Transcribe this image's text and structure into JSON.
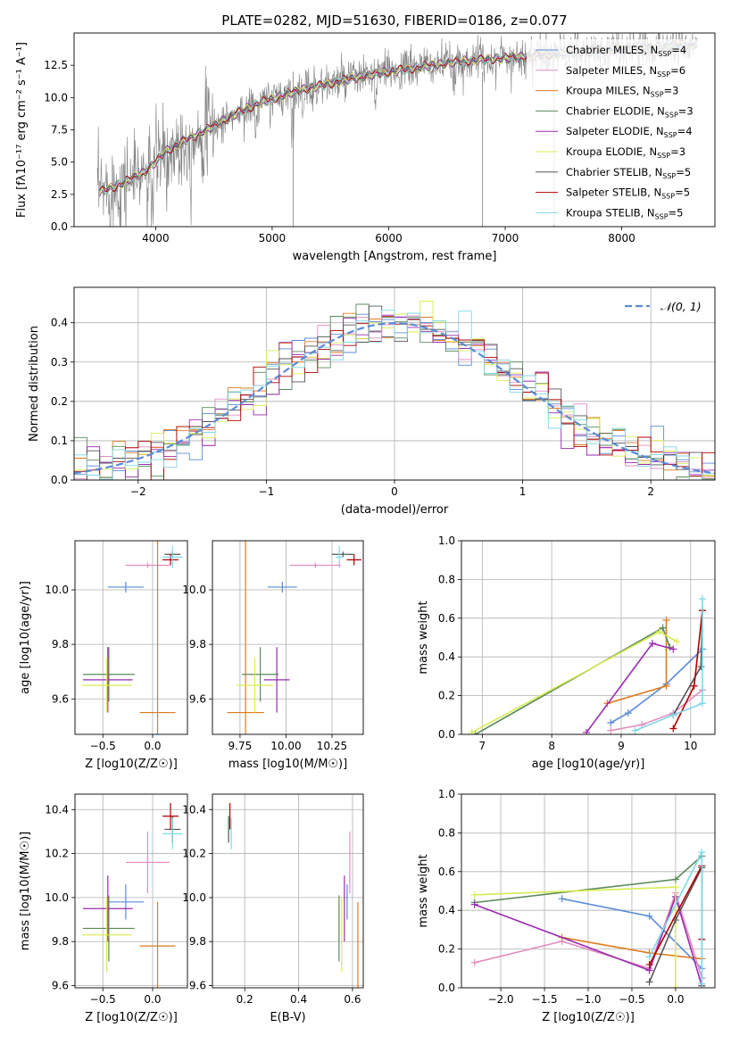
{
  "colors": {
    "Chabrier MILES": "#5b8bd6",
    "Salpeter MILES": "#e38cc0",
    "Kroupa MILES": "#e07b1f",
    "Chabrier ELODIE": "#5a8a5a",
    "Salpeter ELODIE": "#9a2ab0",
    "Kroupa ELODIE": "#d8ec50",
    "Chabrier STELIB": "#555555",
    "Salpeter STELIB": "#b00000",
    "Kroupa STELIB": "#7dd8e8",
    "data": "#808080"
  },
  "chart_data": [
    {
      "type": "line",
      "title": "PLATE=0282, MJD=51630, FIBERID=0186, z=0.077",
      "xlabel": "wavelength [Angstrom, rest frame]",
      "ylabel": "Flux [fλ10⁻¹⁷ erg cm⁻² s⁻¹ A⁻¹]",
      "xlim": [
        3300,
        8800
      ],
      "ylim": [
        0,
        15
      ],
      "xticks": [
        "4000",
        "5000",
        "6000",
        "7000",
        "8000"
      ],
      "yticks": [
        "0.0",
        "2.5",
        "5.0",
        "7.5",
        "10.0",
        "12.5"
      ],
      "legend_position": "top-right",
      "legend": [
        {
          "name": "Chabrier MILES",
          "nssp": "4"
        },
        {
          "name": "Salpeter MILES",
          "nssp": "6"
        },
        {
          "name": "Kroupa MILES",
          "nssp": "3"
        },
        {
          "name": "Chabrier ELODIE",
          "nssp": "3"
        },
        {
          "name": "Salpeter ELODIE",
          "nssp": "4"
        },
        {
          "name": "Kroupa ELODIE",
          "nssp": "3"
        },
        {
          "name": "Chabrier STELIB",
          "nssp": "5"
        },
        {
          "name": "Salpeter STELIB",
          "nssp": "5"
        },
        {
          "name": "Kroupa STELIB",
          "nssp": "5"
        }
      ],
      "continuum": {
        "x": [
          3500,
          3700,
          3900,
          4000,
          4100,
          4300,
          4500,
          4700,
          4900,
          5100,
          5300,
          5500,
          5700,
          6000,
          6300,
          6600,
          6900,
          7200,
          7500,
          7800,
          8100,
          8400,
          8700
        ],
        "y": [
          2.6,
          3.3,
          4.2,
          5.0,
          5.9,
          6.9,
          7.8,
          8.8,
          9.6,
          10.2,
          10.7,
          11.1,
          11.5,
          12.0,
          12.4,
          12.8,
          13.0,
          13.2,
          13.4,
          13.6,
          13.8,
          14.0,
          14.2
        ]
      }
    },
    {
      "type": "line",
      "xlabel": "(data-model)/error",
      "ylabel": "Normed distribution",
      "xlim": [
        -2.5,
        2.5
      ],
      "ylim": [
        0,
        0.49
      ],
      "xticks": [
        "−2",
        "−1",
        "0",
        "1",
        "2"
      ],
      "yticks": [
        "0.0",
        "0.1",
        "0.2",
        "0.3",
        "0.4"
      ],
      "legend_position": "top-right",
      "legend": "𝒩(0, 1)",
      "gaussian": {
        "mu": 0,
        "sigma": 1
      }
    },
    {
      "type": "scatter",
      "xlabel": "Z [log10(Z/Z☉)]",
      "ylabel": "age [log10(age/yr)]",
      "xlim": [
        -0.78,
        0.35
      ],
      "ylim": [
        9.47,
        10.18
      ],
      "xticks": [
        "−0.5",
        "0.0"
      ],
      "yticks": [
        "9.6",
        "9.8",
        "10.0"
      ],
      "points": [
        {
          "s": "Chabrier MILES",
          "x": -0.27,
          "xerr": 0.18,
          "y": 10.01,
          "yerr": 0.02
        },
        {
          "s": "Salpeter MILES",
          "x": -0.05,
          "xerr": 0.22,
          "y": 10.09,
          "yerr": 0.01
        },
        {
          "s": "Kroupa MILES",
          "x": 0.05,
          "xerr": 0.18,
          "y": 9.55,
          "yerr": 0.66
        },
        {
          "s": "Chabrier ELODIE",
          "x": -0.44,
          "xerr": 0.26,
          "y": 9.69,
          "yerr": 0.1
        },
        {
          "s": "Salpeter ELODIE",
          "x": -0.45,
          "xerr": 0.25,
          "y": 9.67,
          "yerr": 0.12
        },
        {
          "s": "Kroupa ELODIE",
          "x": -0.46,
          "xerr": 0.25,
          "y": 9.65,
          "yerr": 0.1
        },
        {
          "s": "Chabrier STELIB",
          "x": 0.2,
          "xerr": 0.08,
          "y": 10.13,
          "yerr": 0.01
        },
        {
          "s": "Salpeter STELIB",
          "x": 0.18,
          "xerr": 0.08,
          "y": 10.11,
          "yerr": 0.02
        },
        {
          "s": "Kroupa STELIB",
          "x": 0.2,
          "xerr": 0.1,
          "y": 10.12,
          "yerr": 0.04
        }
      ]
    },
    {
      "type": "scatter",
      "xlabel": "mass [log10(M/M☉)]",
      "xlim": [
        9.6,
        10.42
      ],
      "ylim": [
        9.47,
        10.18
      ],
      "xticks": [
        "9.75",
        "10.00",
        "10.25"
      ],
      "yticks": [
        "9.6",
        "9.8",
        "10.0"
      ],
      "points": [
        {
          "s": "Chabrier MILES",
          "x": 9.98,
          "xerr": 0.08,
          "y": 10.01,
          "yerr": 0.02
        },
        {
          "s": "Salpeter MILES",
          "x": 10.16,
          "xerr": 0.14,
          "y": 10.09,
          "yerr": 0.01
        },
        {
          "s": "Kroupa MILES",
          "x": 9.78,
          "xerr": 0.1,
          "y": 9.55,
          "yerr": 0.66
        },
        {
          "s": "Chabrier ELODIE",
          "x": 9.86,
          "xerr": 0.1,
          "y": 9.69,
          "yerr": 0.1
        },
        {
          "s": "Salpeter ELODIE",
          "x": 9.95,
          "xerr": 0.07,
          "y": 9.67,
          "yerr": 0.12
        },
        {
          "s": "Kroupa ELODIE",
          "x": 9.83,
          "xerr": 0.1,
          "y": 9.65,
          "yerr": 0.1
        },
        {
          "s": "Chabrier STELIB",
          "x": 10.31,
          "xerr": 0.06,
          "y": 10.13,
          "yerr": 0.01
        },
        {
          "s": "Salpeter STELIB",
          "x": 10.37,
          "xerr": 0.04,
          "y": 10.11,
          "yerr": 0.02
        },
        {
          "s": "Kroupa STELIB",
          "x": 10.29,
          "xerr": 0.02,
          "y": 10.12,
          "yerr": 0.04
        }
      ]
    },
    {
      "type": "line",
      "xlabel": "age [log10(age/yr)]",
      "ylabel": "mass weight",
      "xlim": [
        6.7,
        10.35
      ],
      "ylim": [
        0,
        1
      ],
      "xticks": [
        "7",
        "8",
        "9",
        "10"
      ],
      "yticks": [
        "0.0",
        "0.2",
        "0.4",
        "0.6",
        "0.8",
        "1.0"
      ],
      "series": [
        {
          "s": "Chabrier MILES",
          "x": [
            8.85,
            9.1,
            9.65,
            10.17
          ],
          "y": [
            0.06,
            0.11,
            0.26,
            0.44
          ]
        },
        {
          "s": "Salpeter MILES",
          "x": [
            8.85,
            9.3,
            9.75,
            10.17
          ],
          "y": [
            0.02,
            0.05,
            0.11,
            0.23
          ]
        },
        {
          "s": "Kroupa MILES",
          "x": [
            8.8,
            9.65,
            9.65
          ],
          "y": [
            0.16,
            0.25,
            0.59
          ]
        },
        {
          "s": "Chabrier ELODIE",
          "x": [
            6.9,
            9.6,
            9.7
          ],
          "y": [
            0.0,
            0.55,
            0.45
          ]
        },
        {
          "s": "Salpeter ELODIE",
          "x": [
            8.5,
            9.45,
            9.75
          ],
          "y": [
            0.01,
            0.47,
            0.44
          ]
        },
        {
          "s": "Kroupa ELODIE",
          "x": [
            6.85,
            9.55,
            9.8
          ],
          "y": [
            0.01,
            0.53,
            0.48
          ]
        },
        {
          "s": "Chabrier STELIB",
          "x": [
            9.75,
            10.15,
            10.17
          ],
          "y": [
            0.1,
            0.35,
            0.64
          ]
        },
        {
          "s": "Salpeter STELIB",
          "x": [
            9.75,
            10.05,
            10.17
          ],
          "y": [
            0.03,
            0.25,
            0.64
          ]
        },
        {
          "s": "Kroupa STELIB",
          "x": [
            9.2,
            9.75,
            10.17,
            10.17
          ],
          "y": [
            0.02,
            0.1,
            0.16,
            0.7
          ]
        }
      ]
    },
    {
      "type": "scatter",
      "xlabel": "Z [log10(Z/Z☉)]",
      "ylabel": "mass [log10(M/M☉)]",
      "xlim": [
        -0.78,
        0.35
      ],
      "ylim": [
        9.59,
        10.47
      ],
      "xticks": [
        "−0.5",
        "0.0"
      ],
      "yticks": [
        "9.6",
        "9.8",
        "10.0",
        "10.2",
        "10.4"
      ],
      "points": [
        {
          "s": "Chabrier MILES",
          "x": -0.27,
          "xerr": 0.18,
          "y": 9.98,
          "yerr": 0.08
        },
        {
          "s": "Salpeter MILES",
          "x": -0.05,
          "xerr": 0.22,
          "y": 10.16,
          "yerr": 0.14
        },
        {
          "s": "Kroupa MILES",
          "x": 0.05,
          "xerr": 0.18,
          "y": 9.78,
          "yerr": 0.2
        },
        {
          "s": "Chabrier ELODIE",
          "x": -0.44,
          "xerr": 0.26,
          "y": 9.86,
          "yerr": 0.15
        },
        {
          "s": "Salpeter ELODIE",
          "x": -0.45,
          "xerr": 0.25,
          "y": 9.95,
          "yerr": 0.15
        },
        {
          "s": "Kroupa ELODIE",
          "x": -0.46,
          "xerr": 0.25,
          "y": 9.83,
          "yerr": 0.17
        },
        {
          "s": "Chabrier STELIB",
          "x": 0.2,
          "xerr": 0.08,
          "y": 10.31,
          "yerr": 0.06
        },
        {
          "s": "Salpeter STELIB",
          "x": 0.18,
          "xerr": 0.08,
          "y": 10.37,
          "yerr": 0.06
        },
        {
          "s": "Kroupa STELIB",
          "x": 0.2,
          "xerr": 0.1,
          "y": 10.29,
          "yerr": 0.07
        }
      ]
    },
    {
      "type": "scatter",
      "xlabel": "E(B-V)",
      "xlim": [
        0.08,
        0.64
      ],
      "ylim": [
        9.59,
        10.47
      ],
      "xticks": [
        "0.2",
        "0.4",
        "0.6"
      ],
      "yticks": [
        "9.6",
        "9.8",
        "10.0",
        "10.2",
        "10.4"
      ],
      "points": [
        {
          "s": "Chabrier MILES",
          "x": 0.58,
          "xerr": 0,
          "y": 9.98,
          "yerr": 0.08
        },
        {
          "s": "Salpeter MILES",
          "x": 0.59,
          "xerr": 0,
          "y": 10.16,
          "yerr": 0.14
        },
        {
          "s": "Kroupa MILES",
          "x": 0.62,
          "xerr": 0,
          "y": 9.78,
          "yerr": 0.2
        },
        {
          "s": "Chabrier ELODIE",
          "x": 0.55,
          "xerr": 0,
          "y": 9.86,
          "yerr": 0.15
        },
        {
          "s": "Salpeter ELODIE",
          "x": 0.57,
          "xerr": 0,
          "y": 9.95,
          "yerr": 0.15
        },
        {
          "s": "Kroupa ELODIE",
          "x": 0.56,
          "xerr": 0,
          "y": 9.83,
          "yerr": 0.17
        },
        {
          "s": "Chabrier STELIB",
          "x": 0.14,
          "xerr": 0,
          "y": 10.31,
          "yerr": 0.06
        },
        {
          "s": "Salpeter STELIB",
          "x": 0.145,
          "xerr": 0,
          "y": 10.37,
          "yerr": 0.06
        },
        {
          "s": "Kroupa STELIB",
          "x": 0.15,
          "xerr": 0,
          "y": 10.29,
          "yerr": 0.07
        }
      ]
    },
    {
      "type": "line",
      "xlabel": "Z [log10(Z/Z☉)]",
      "ylabel": "mass weight",
      "xlim": [
        -2.45,
        0.45
      ],
      "ylim": [
        0,
        1
      ],
      "xticks": [
        "−2.0",
        "−1.5",
        "−1.0",
        "−0.5",
        "0.0"
      ],
      "yticks": [
        "0.0",
        "0.2",
        "0.4",
        "0.6",
        "0.8",
        "1.0"
      ],
      "series": [
        {
          "s": "Chabrier MILES",
          "x": [
            -1.3,
            -0.3,
            0.3
          ],
          "y": [
            0.46,
            0.37,
            0.1
          ]
        },
        {
          "s": "Salpeter MILES",
          "x": [
            -2.3,
            -1.3,
            -0.3,
            0.0,
            0.3
          ],
          "y": [
            0.13,
            0.24,
            0.1,
            0.49,
            0.05
          ]
        },
        {
          "s": "Kroupa MILES",
          "x": [
            -1.3,
            -0.3,
            0.3
          ],
          "y": [
            0.26,
            0.18,
            0.15
          ]
        },
        {
          "s": "Chabrier ELODIE",
          "x": [
            -2.3,
            0.0,
            0.3
          ],
          "y": [
            0.44,
            0.56,
            0.68
          ]
        },
        {
          "s": "Salpeter ELODIE",
          "x": [
            -2.3,
            -0.3,
            0.0,
            0.3
          ],
          "y": [
            0.43,
            0.09,
            0.47,
            0.01
          ]
        },
        {
          "s": "Kroupa ELODIE",
          "x": [
            -2.3,
            0.0,
            0.0
          ],
          "y": [
            0.48,
            0.52,
            0.0
          ]
        },
        {
          "s": "Chabrier STELIB",
          "x": [
            -0.3,
            0.0,
            0.3,
            0.3
          ],
          "y": [
            0.03,
            0.35,
            0.62,
            0.01
          ]
        },
        {
          "s": "Salpeter STELIB",
          "x": [
            -0.3,
            0.3,
            0.3
          ],
          "y": [
            0.12,
            0.63,
            0.25
          ]
        },
        {
          "s": "Kroupa STELIB",
          "x": [
            -0.3,
            0.3,
            0.3
          ],
          "y": [
            0.16,
            0.7,
            0.02
          ]
        }
      ]
    }
  ]
}
